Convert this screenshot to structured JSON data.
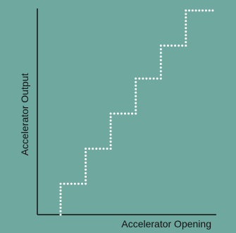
{
  "colors": {
    "background": "#6ea89f",
    "axis": "#111111",
    "series": "#ffffff"
  },
  "chart_data": {
    "type": "line",
    "title": "",
    "xlabel": "Accelerator Opening",
    "ylabel": "Accelerator Output",
    "grid": false,
    "legend": "none",
    "xlim": [
      0,
      100
    ],
    "ylim": [
      0,
      100
    ],
    "series": [
      {
        "style": "dotted-step",
        "points": [
          [
            13,
            0
          ],
          [
            13,
            15
          ],
          [
            27,
            15
          ],
          [
            27,
            32
          ],
          [
            41,
            32
          ],
          [
            41,
            49
          ],
          [
            55,
            49
          ],
          [
            55,
            66
          ],
          [
            69,
            66
          ],
          [
            69,
            82
          ],
          [
            83,
            82
          ],
          [
            83,
            99
          ],
          [
            98,
            99
          ]
        ]
      }
    ]
  }
}
